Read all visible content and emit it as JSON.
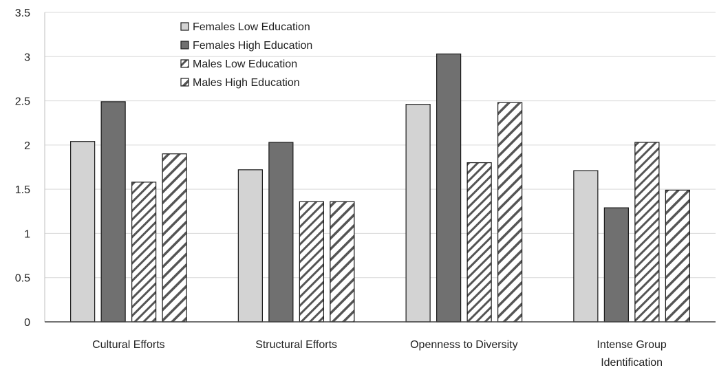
{
  "chart_data": {
    "type": "bar",
    "title": "",
    "xlabel": "",
    "ylabel": "",
    "ylim": [
      0,
      3.5
    ],
    "yticks": [
      "0",
      "0.5",
      "1",
      "1.5",
      "2",
      "2.5",
      "3",
      "3.5"
    ],
    "grid": true,
    "legend_position": "top-left",
    "categories": [
      [
        "Cultural Efforts"
      ],
      [
        "Structural Efforts"
      ],
      [
        "Openness to Diversity"
      ],
      [
        "Intense Group",
        "Identification"
      ]
    ],
    "series": [
      {
        "name": "Females Low Education",
        "values": [
          2.04,
          1.72,
          2.46,
          1.71
        ],
        "color": "#d3d3d3",
        "pattern": "solid-light"
      },
      {
        "name": "Females High Education",
        "values": [
          2.49,
          2.03,
          3.03,
          1.29
        ],
        "color": "#707070",
        "pattern": "solid-dark"
      },
      {
        "name": "Males Low Education",
        "values": [
          1.58,
          1.36,
          1.8,
          2.03
        ],
        "color": "#555555",
        "pattern": "hatch-dense"
      },
      {
        "name": "Males High Education",
        "values": [
          1.9,
          1.36,
          2.48,
          1.49
        ],
        "color": "#555555",
        "pattern": "hatch-wide"
      }
    ]
  }
}
